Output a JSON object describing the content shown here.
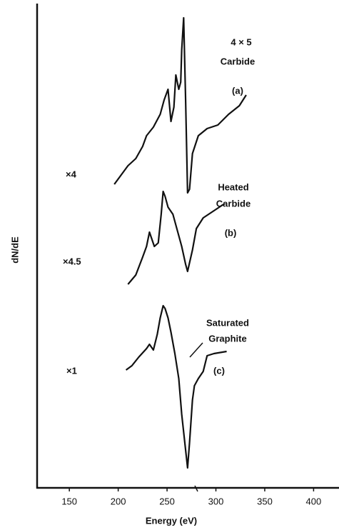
{
  "chart_data": {
    "type": "line",
    "x_label": "Energy (eV)",
    "y_label": "dN/dE",
    "xlim": [
      117,
      426
    ],
    "ylim": [
      0,
      678
    ],
    "xticks": [
      150,
      200,
      250,
      300,
      350,
      400
    ],
    "series": [
      {
        "color": "#111111",
        "x": [
          196,
          203,
          210,
          218,
          225,
          229,
          236,
          243,
          247,
          251,
          254,
          257,
          259,
          262,
          264,
          265,
          267,
          269,
          271,
          273,
          276,
          282,
          291,
          302,
          313,
          324,
          331
        ],
        "values": [
          425,
          438,
          451,
          461,
          478,
          493,
          505,
          523,
          543,
          558,
          513,
          533,
          578,
          558,
          568,
          613,
          658,
          543,
          413,
          418,
          468,
          493,
          503,
          508,
          523,
          535,
          550
        ]
      },
      {
        "color": "#111111",
        "x": [
          210,
          218,
          225,
          229,
          232,
          237,
          241,
          244,
          246,
          248,
          251,
          256,
          260,
          265,
          269,
          271,
          273,
          276,
          280,
          287,
          298,
          309
        ],
        "values": [
          285,
          298,
          323,
          338,
          358,
          338,
          343,
          383,
          415,
          408,
          393,
          383,
          363,
          338,
          313,
          303,
          315,
          333,
          363,
          378,
          388,
          398
        ]
      },
      {
        "color": "#111111",
        "x": [
          208,
          214,
          221,
          229,
          232,
          236,
          240,
          243,
          246,
          248,
          251,
          254,
          258,
          262,
          265,
          269,
          271,
          273,
          276,
          278,
          282,
          287,
          291,
          298,
          311
        ],
        "values": [
          165,
          171,
          183,
          195,
          201,
          193,
          215,
          238,
          255,
          251,
          238,
          218,
          188,
          153,
          103,
          53,
          28,
          63,
          123,
          143,
          153,
          163,
          185,
          188,
          191
        ]
      }
    ],
    "annotations": [
      "4 × 5",
      "Carbide",
      "(a)",
      "Heated",
      "Carbide",
      "(b)",
      "Saturated",
      "Graphite",
      "(c)",
      "×4",
      "×4.5",
      "×1"
    ]
  }
}
